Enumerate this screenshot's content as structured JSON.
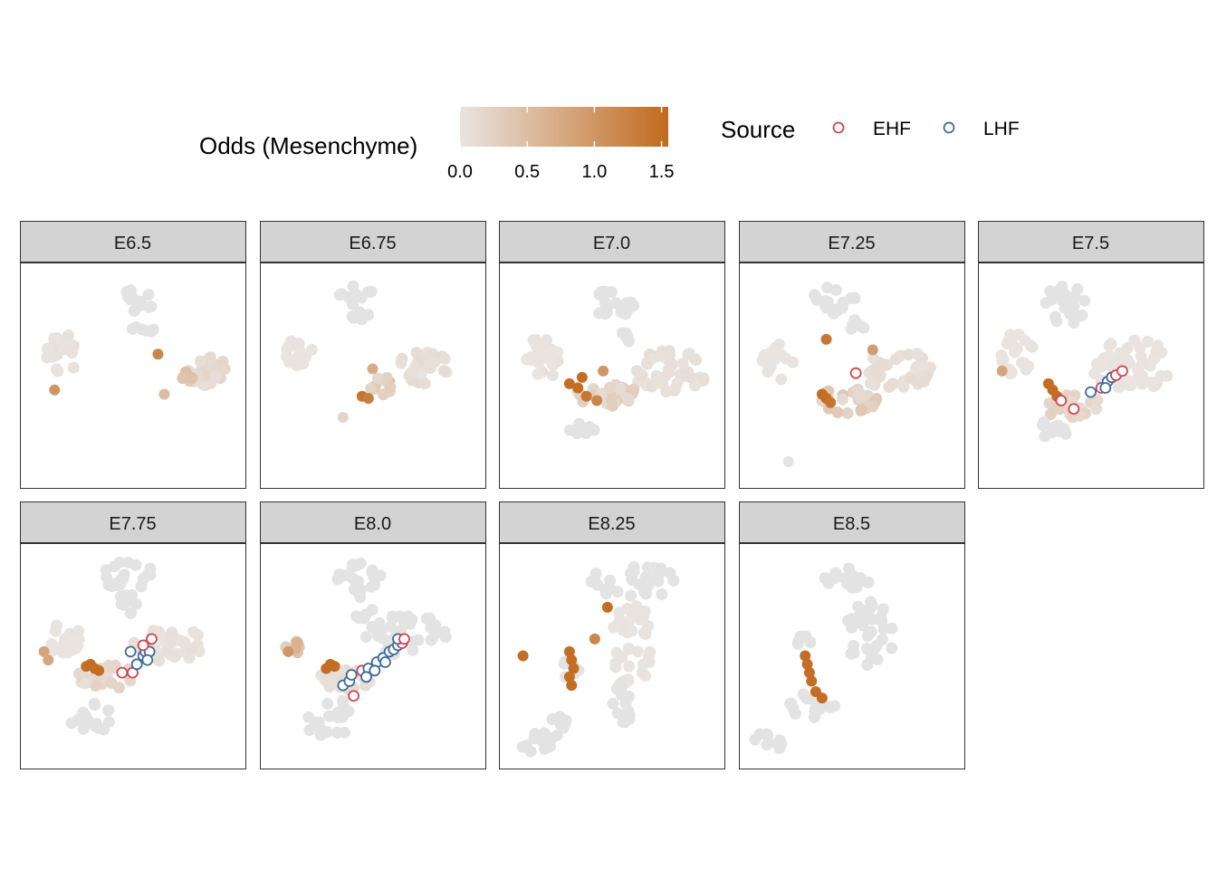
{
  "chart_data": {
    "type": "scatter",
    "description_free": true,
    "color_scale": {
      "title": "Odds (Mesenchyme)",
      "low_color": "#e9e5e2",
      "high_color": "#c26a1e",
      "limits": [
        0,
        1.55
      ],
      "breaks": [
        0.0,
        0.5,
        1.0,
        1.5
      ],
      "break_labels": [
        "0.0",
        "0.5",
        "1.0",
        "1.5"
      ]
    },
    "shape_legend": {
      "title": "Source",
      "entries": [
        {
          "label": "EHF",
          "color": "#d2434e"
        },
        {
          "label": "LHF",
          "color": "#3f6a9e"
        }
      ]
    },
    "background_cell_color": "#e3e3e3",
    "panel_strip_color": "#d3d3d3",
    "panels": [
      {
        "label": "E6.5",
        "clusters": [
          {
            "x": 0.5,
            "y": 0.85,
            "rx": 0.1,
            "ry": 0.06,
            "n": 14,
            "odds": 0
          },
          {
            "x": 0.53,
            "y": 0.72,
            "rx": 0.07,
            "ry": 0.03,
            "n": 6,
            "odds": 0
          },
          {
            "x": 0.16,
            "y": 0.6,
            "rx": 0.08,
            "ry": 0.1,
            "n": 22,
            "odds": 0.05
          },
          {
            "x": 0.85,
            "y": 0.52,
            "rx": 0.1,
            "ry": 0.07,
            "n": 28,
            "odds": 0.15
          },
          {
            "x": 0.76,
            "y": 0.5,
            "rx": 0.04,
            "ry": 0.03,
            "n": 6,
            "odds": 0.4
          }
        ],
        "hot": [
          {
            "x": 0.62,
            "y": 0.6,
            "odds": 1.2
          },
          {
            "x": 0.13,
            "y": 0.43,
            "odds": 1.0
          },
          {
            "x": 0.65,
            "y": 0.41,
            "odds": 0.5
          }
        ],
        "source_points": []
      },
      {
        "label": "E6.75",
        "clusters": [
          {
            "x": 0.42,
            "y": 0.88,
            "rx": 0.08,
            "ry": 0.05,
            "n": 10,
            "odds": 0
          },
          {
            "x": 0.45,
            "y": 0.78,
            "rx": 0.05,
            "ry": 0.04,
            "n": 5,
            "odds": 0
          },
          {
            "x": 0.15,
            "y": 0.6,
            "rx": 0.07,
            "ry": 0.08,
            "n": 16,
            "odds": 0.02
          },
          {
            "x": 0.74,
            "y": 0.55,
            "rx": 0.12,
            "ry": 0.09,
            "n": 30,
            "odds": 0.1
          },
          {
            "x": 0.55,
            "y": 0.45,
            "rx": 0.07,
            "ry": 0.05,
            "n": 10,
            "odds": 0.4
          }
        ],
        "hot": [
          {
            "x": 0.45,
            "y": 0.4,
            "odds": 1.4
          },
          {
            "x": 0.48,
            "y": 0.39,
            "odds": 1.3
          },
          {
            "x": 0.5,
            "y": 0.53,
            "odds": 0.7
          },
          {
            "x": 0.36,
            "y": 0.3,
            "odds": 0.2
          }
        ],
        "source_points": []
      },
      {
        "label": "E7.0",
        "clusters": [
          {
            "x": 0.5,
            "y": 0.85,
            "rx": 0.12,
            "ry": 0.09,
            "n": 20,
            "odds": 0
          },
          {
            "x": 0.55,
            "y": 0.67,
            "rx": 0.04,
            "ry": 0.05,
            "n": 6,
            "odds": 0
          },
          {
            "x": 0.17,
            "y": 0.58,
            "rx": 0.09,
            "ry": 0.1,
            "n": 24,
            "odds": 0.03
          },
          {
            "x": 0.78,
            "y": 0.52,
            "rx": 0.18,
            "ry": 0.1,
            "n": 45,
            "odds": 0.08
          },
          {
            "x": 0.48,
            "y": 0.4,
            "rx": 0.16,
            "ry": 0.06,
            "n": 30,
            "odds": 0.25
          },
          {
            "x": 0.33,
            "y": 0.25,
            "rx": 0.1,
            "ry": 0.03,
            "n": 10,
            "odds": 0
          }
        ],
        "hot": [
          {
            "x": 0.3,
            "y": 0.46,
            "odds": 1.5
          },
          {
            "x": 0.34,
            "y": 0.44,
            "odds": 1.5
          },
          {
            "x": 0.38,
            "y": 0.4,
            "odds": 1.4
          },
          {
            "x": 0.43,
            "y": 0.38,
            "odds": 1.2
          },
          {
            "x": 0.46,
            "y": 0.52,
            "odds": 1.0
          },
          {
            "x": 0.36,
            "y": 0.49,
            "odds": 1.5
          }
        ],
        "source_points": []
      },
      {
        "label": "E7.25",
        "clusters": [
          {
            "x": 0.42,
            "y": 0.86,
            "rx": 0.1,
            "ry": 0.08,
            "n": 18,
            "odds": 0
          },
          {
            "x": 0.52,
            "y": 0.73,
            "rx": 0.04,
            "ry": 0.04,
            "n": 6,
            "odds": 0
          },
          {
            "x": 0.15,
            "y": 0.56,
            "rx": 0.08,
            "ry": 0.09,
            "n": 18,
            "odds": 0.02
          },
          {
            "x": 0.72,
            "y": 0.52,
            "rx": 0.18,
            "ry": 0.1,
            "n": 45,
            "odds": 0.1
          },
          {
            "x": 0.48,
            "y": 0.38,
            "rx": 0.14,
            "ry": 0.06,
            "n": 28,
            "odds": 0.3
          }
        ],
        "hot": [
          {
            "x": 0.38,
            "y": 0.39,
            "odds": 1.5
          },
          {
            "x": 0.36,
            "y": 0.41,
            "odds": 1.5
          },
          {
            "x": 0.4,
            "y": 0.37,
            "odds": 1.4
          },
          {
            "x": 0.38,
            "y": 0.67,
            "odds": 1.4
          },
          {
            "x": 0.6,
            "y": 0.62,
            "odds": 0.9
          },
          {
            "x": 0.2,
            "y": 0.09,
            "odds": 0
          }
        ],
        "source_points": [
          {
            "x": 0.52,
            "y": 0.51,
            "source": "EHF"
          }
        ]
      },
      {
        "label": "E7.5",
        "clusters": [
          {
            "x": 0.38,
            "y": 0.84,
            "rx": 0.1,
            "ry": 0.1,
            "n": 22,
            "odds": 0
          },
          {
            "x": 0.15,
            "y": 0.6,
            "rx": 0.08,
            "ry": 0.1,
            "n": 20,
            "odds": 0.02
          },
          {
            "x": 0.7,
            "y": 0.55,
            "rx": 0.2,
            "ry": 0.12,
            "n": 45,
            "odds": 0.02
          },
          {
            "x": 0.42,
            "y": 0.35,
            "rx": 0.14,
            "ry": 0.06,
            "n": 26,
            "odds": 0.2
          },
          {
            "x": 0.3,
            "y": 0.24,
            "rx": 0.1,
            "ry": 0.04,
            "n": 10,
            "odds": 0
          }
        ],
        "hot": [
          {
            "x": 0.3,
            "y": 0.46,
            "odds": 1.5
          },
          {
            "x": 0.32,
            "y": 0.43,
            "odds": 1.5
          },
          {
            "x": 0.34,
            "y": 0.4,
            "odds": 1.5
          },
          {
            "x": 0.08,
            "y": 0.52,
            "odds": 0.8
          }
        ],
        "source_points": [
          {
            "x": 0.36,
            "y": 0.38,
            "source": "EHF"
          },
          {
            "x": 0.42,
            "y": 0.34,
            "source": "EHF"
          },
          {
            "x": 0.5,
            "y": 0.42,
            "source": "LHF"
          },
          {
            "x": 0.55,
            "y": 0.44,
            "source": "EHF"
          },
          {
            "x": 0.58,
            "y": 0.47,
            "source": "LHF"
          },
          {
            "x": 0.6,
            "y": 0.49,
            "source": "LHF"
          },
          {
            "x": 0.62,
            "y": 0.5,
            "source": "EHF"
          },
          {
            "x": 0.57,
            "y": 0.44,
            "source": "LHF"
          },
          {
            "x": 0.65,
            "y": 0.52,
            "source": "EHF"
          }
        ]
      },
      {
        "label": "E7.75",
        "clusters": [
          {
            "x": 0.48,
            "y": 0.88,
            "rx": 0.12,
            "ry": 0.07,
            "n": 20,
            "odds": 0
          },
          {
            "x": 0.48,
            "y": 0.75,
            "rx": 0.05,
            "ry": 0.06,
            "n": 8,
            "odds": 0
          },
          {
            "x": 0.18,
            "y": 0.58,
            "rx": 0.07,
            "ry": 0.09,
            "n": 16,
            "odds": 0.02
          },
          {
            "x": 0.68,
            "y": 0.55,
            "rx": 0.18,
            "ry": 0.08,
            "n": 35,
            "odds": 0.05
          },
          {
            "x": 0.38,
            "y": 0.4,
            "rx": 0.14,
            "ry": 0.06,
            "n": 26,
            "odds": 0.2
          },
          {
            "x": 0.3,
            "y": 0.2,
            "rx": 0.1,
            "ry": 0.08,
            "n": 16,
            "odds": 0
          }
        ],
        "hot": [
          {
            "x": 0.3,
            "y": 0.46,
            "odds": 1.5
          },
          {
            "x": 0.32,
            "y": 0.44,
            "odds": 1.5
          },
          {
            "x": 0.28,
            "y": 0.45,
            "odds": 1.5
          },
          {
            "x": 0.34,
            "y": 0.43,
            "odds": 1.5
          },
          {
            "x": 0.08,
            "y": 0.52,
            "odds": 0.8
          },
          {
            "x": 0.1,
            "y": 0.48,
            "odds": 0.8
          }
        ],
        "source_points": [
          {
            "x": 0.45,
            "y": 0.42,
            "source": "EHF"
          },
          {
            "x": 0.5,
            "y": 0.42,
            "source": "EHF"
          },
          {
            "x": 0.52,
            "y": 0.46,
            "source": "LHF"
          },
          {
            "x": 0.55,
            "y": 0.5,
            "source": "LHF"
          },
          {
            "x": 0.56,
            "y": 0.52,
            "source": "LHF"
          },
          {
            "x": 0.58,
            "y": 0.52,
            "source": "LHF"
          },
          {
            "x": 0.49,
            "y": 0.52,
            "source": "LHF"
          },
          {
            "x": 0.55,
            "y": 0.55,
            "source": "EHF"
          },
          {
            "x": 0.59,
            "y": 0.58,
            "source": "EHF"
          },
          {
            "x": 0.57,
            "y": 0.48,
            "source": "LHF"
          }
        ]
      },
      {
        "label": "E8.0",
        "clusters": [
          {
            "x": 0.45,
            "y": 0.88,
            "rx": 0.12,
            "ry": 0.07,
            "n": 20,
            "odds": 0
          },
          {
            "x": 0.45,
            "y": 0.73,
            "rx": 0.05,
            "ry": 0.06,
            "n": 8,
            "odds": 0
          },
          {
            "x": 0.12,
            "y": 0.55,
            "rx": 0.04,
            "ry": 0.05,
            "n": 6,
            "odds": 0.5
          },
          {
            "x": 0.65,
            "y": 0.6,
            "rx": 0.2,
            "ry": 0.1,
            "n": 40,
            "odds": 0
          },
          {
            "x": 0.38,
            "y": 0.4,
            "rx": 0.14,
            "ry": 0.06,
            "n": 26,
            "odds": 0.1
          },
          {
            "x": 0.3,
            "y": 0.2,
            "rx": 0.12,
            "ry": 0.1,
            "n": 18,
            "odds": 0
          }
        ],
        "hot": [
          {
            "x": 0.3,
            "y": 0.46,
            "odds": 1.5
          },
          {
            "x": 0.32,
            "y": 0.45,
            "odds": 1.5
          },
          {
            "x": 0.28,
            "y": 0.44,
            "odds": 1.5
          },
          {
            "x": 0.1,
            "y": 0.52,
            "odds": 1.0
          }
        ],
        "source_points": [
          {
            "x": 0.36,
            "y": 0.36,
            "source": "LHF"
          },
          {
            "x": 0.39,
            "y": 0.38,
            "source": "LHF"
          },
          {
            "x": 0.4,
            "y": 0.41,
            "source": "LHF"
          },
          {
            "x": 0.41,
            "y": 0.31,
            "source": "EHF"
          },
          {
            "x": 0.45,
            "y": 0.43,
            "source": "EHF"
          },
          {
            "x": 0.48,
            "y": 0.44,
            "source": "LHF"
          },
          {
            "x": 0.52,
            "y": 0.47,
            "source": "LHF"
          },
          {
            "x": 0.55,
            "y": 0.49,
            "source": "LHF"
          },
          {
            "x": 0.58,
            "y": 0.52,
            "source": "LHF"
          },
          {
            "x": 0.6,
            "y": 0.53,
            "source": "LHF"
          },
          {
            "x": 0.62,
            "y": 0.55,
            "source": "LHF"
          },
          {
            "x": 0.64,
            "y": 0.56,
            "source": "EHF"
          },
          {
            "x": 0.56,
            "y": 0.47,
            "source": "LHF"
          },
          {
            "x": 0.51,
            "y": 0.43,
            "source": "LHF"
          },
          {
            "x": 0.47,
            "y": 0.4,
            "source": "LHF"
          },
          {
            "x": 0.62,
            "y": 0.58,
            "source": "LHF"
          },
          {
            "x": 0.65,
            "y": 0.58,
            "source": "EHF"
          }
        ]
      },
      {
        "label": "E8.25",
        "clusters": [
          {
            "x": 0.65,
            "y": 0.85,
            "rx": 0.15,
            "ry": 0.08,
            "n": 22,
            "odds": 0
          },
          {
            "x": 0.45,
            "y": 0.85,
            "rx": 0.05,
            "ry": 0.08,
            "n": 8,
            "odds": 0
          },
          {
            "x": 0.6,
            "y": 0.55,
            "rx": 0.1,
            "ry": 0.22,
            "n": 40,
            "odds": 0.02
          },
          {
            "x": 0.3,
            "y": 0.45,
            "rx": 0.05,
            "ry": 0.06,
            "n": 8,
            "odds": 0
          },
          {
            "x": 0.15,
            "y": 0.1,
            "rx": 0.1,
            "ry": 0.06,
            "n": 14,
            "odds": 0
          },
          {
            "x": 0.25,
            "y": 0.18,
            "rx": 0.05,
            "ry": 0.04,
            "n": 8,
            "odds": 0
          },
          {
            "x": 0.55,
            "y": 0.28,
            "rx": 0.06,
            "ry": 0.1,
            "n": 14,
            "odds": 0
          }
        ],
        "hot": [
          {
            "x": 0.3,
            "y": 0.52,
            "odds": 1.5
          },
          {
            "x": 0.31,
            "y": 0.48,
            "odds": 1.5
          },
          {
            "x": 0.32,
            "y": 0.44,
            "odds": 1.5
          },
          {
            "x": 0.3,
            "y": 0.4,
            "odds": 1.5
          },
          {
            "x": 0.31,
            "y": 0.36,
            "odds": 1.5
          },
          {
            "x": 0.08,
            "y": 0.5,
            "odds": 1.5
          },
          {
            "x": 0.48,
            "y": 0.73,
            "odds": 1.5
          },
          {
            "x": 0.42,
            "y": 0.58,
            "odds": 1.2
          }
        ],
        "source_points": []
      },
      {
        "label": "E8.5",
        "clusters": [
          {
            "x": 0.48,
            "y": 0.87,
            "rx": 0.12,
            "ry": 0.05,
            "n": 16,
            "odds": 0
          },
          {
            "x": 0.58,
            "y": 0.6,
            "rx": 0.12,
            "ry": 0.16,
            "n": 34,
            "odds": 0
          },
          {
            "x": 0.28,
            "y": 0.55,
            "rx": 0.05,
            "ry": 0.05,
            "n": 6,
            "odds": 0
          },
          {
            "x": 0.3,
            "y": 0.26,
            "rx": 0.12,
            "ry": 0.06,
            "n": 16,
            "odds": 0
          },
          {
            "x": 0.12,
            "y": 0.1,
            "rx": 0.08,
            "ry": 0.05,
            "n": 10,
            "odds": 0
          }
        ],
        "hot": [
          {
            "x": 0.28,
            "y": 0.5,
            "odds": 1.5
          },
          {
            "x": 0.29,
            "y": 0.46,
            "odds": 1.5
          },
          {
            "x": 0.3,
            "y": 0.42,
            "odds": 1.5
          },
          {
            "x": 0.31,
            "y": 0.38,
            "odds": 1.5
          },
          {
            "x": 0.33,
            "y": 0.33,
            "odds": 1.5
          },
          {
            "x": 0.36,
            "y": 0.3,
            "odds": 1.5
          }
        ],
        "source_points": []
      }
    ]
  }
}
